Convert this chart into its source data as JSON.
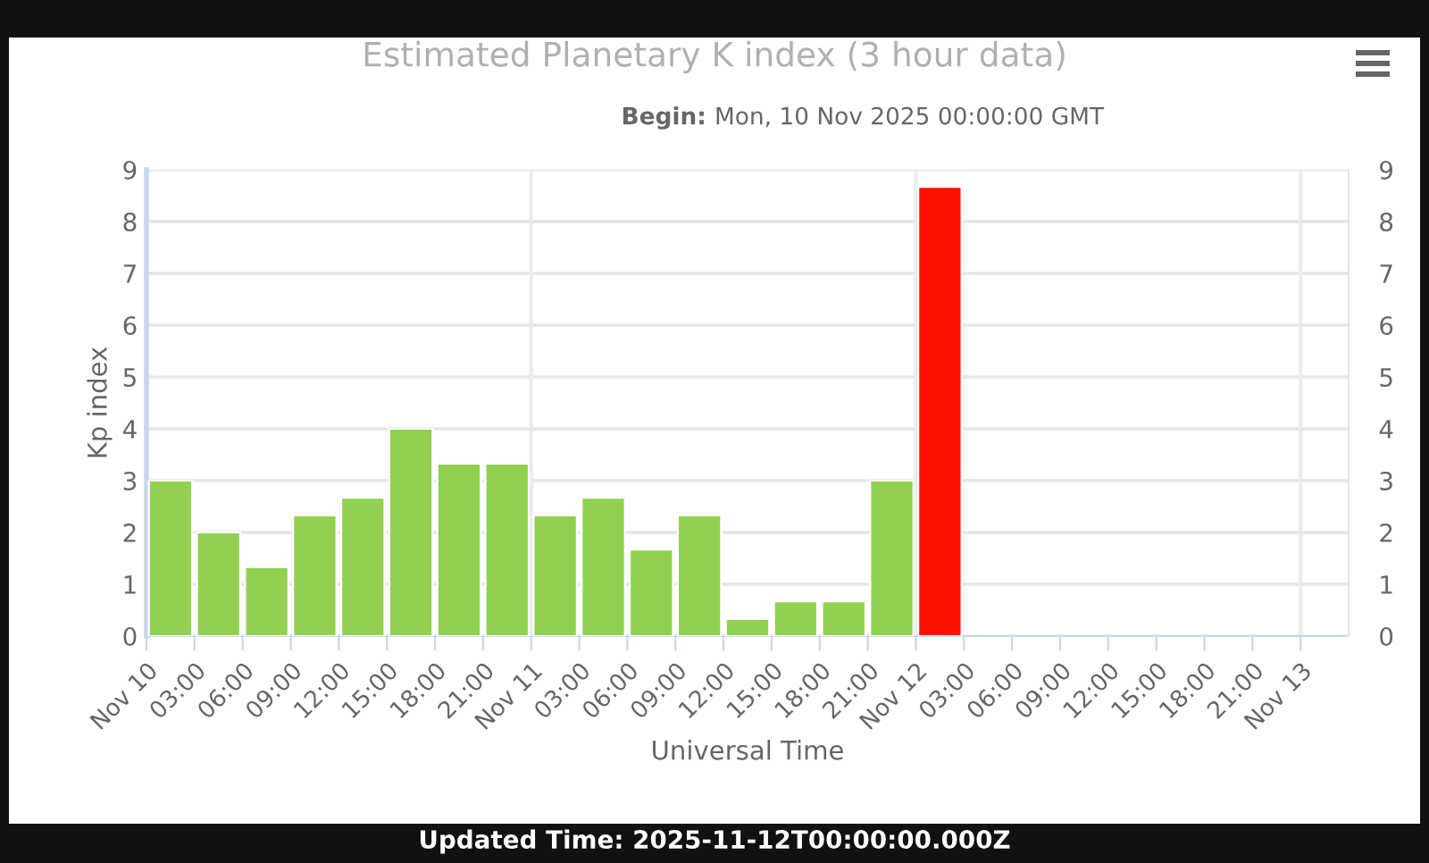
{
  "chart_data": {
    "type": "bar",
    "title": "Estimated Planetary K index (3 hour data)",
    "subtitle": "Begin: Mon, 10 Nov 2025 00:00:00 GMT",
    "xlabel": "Universal Time",
    "ylabel": "Kp index",
    "x": [
      "2025-11-10T01:30",
      "2025-11-10T04:30",
      "2025-11-10T07:30",
      "2025-11-10T10:30",
      "2025-11-10T13:30",
      "2025-11-10T16:30",
      "2025-11-10T19:30",
      "2025-11-10T22:30",
      "2025-11-11T01:30",
      "2025-11-11T04:30",
      "2025-11-11T07:30",
      "2025-11-11T10:30",
      "2025-11-11T13:30",
      "2025-11-11T16:30",
      "2025-11-11T19:30",
      "2025-11-11T22:30",
      "2025-11-12T01:30"
    ],
    "values": [
      3,
      2,
      1.33,
      2.33,
      2.67,
      4,
      3.33,
      3.33,
      2.33,
      2.67,
      1.67,
      2.33,
      0.33,
      0.67,
      0.67,
      3,
      8.67
    ],
    "colors": [
      "#92d050",
      "#92d050",
      "#92d050",
      "#92d050",
      "#92d050",
      "#92d050",
      "#92d050",
      "#92d050",
      "#92d050",
      "#92d050",
      "#92d050",
      "#92d050",
      "#92d050",
      "#92d050",
      "#92d050",
      "#92d050",
      "#ff1100"
    ],
    "xlim": [
      "2025-11-10T00:00",
      "2025-11-13T03:00"
    ],
    "xticks": [
      {
        "value": "2025-11-10T00:00",
        "label": "Nov 10"
      },
      {
        "value": "2025-11-10T03:00",
        "label": "03:00"
      },
      {
        "value": "2025-11-10T06:00",
        "label": "06:00"
      },
      {
        "value": "2025-11-10T09:00",
        "label": "09:00"
      },
      {
        "value": "2025-11-10T12:00",
        "label": "12:00"
      },
      {
        "value": "2025-11-10T15:00",
        "label": "15:00"
      },
      {
        "value": "2025-11-10T18:00",
        "label": "18:00"
      },
      {
        "value": "2025-11-10T21:00",
        "label": "21:00"
      },
      {
        "value": "2025-11-11T00:00",
        "label": "Nov 11"
      },
      {
        "value": "2025-11-11T03:00",
        "label": "03:00"
      },
      {
        "value": "2025-11-11T06:00",
        "label": "06:00"
      },
      {
        "value": "2025-11-11T09:00",
        "label": "09:00"
      },
      {
        "value": "2025-11-11T12:00",
        "label": "12:00"
      },
      {
        "value": "2025-11-11T15:00",
        "label": "15:00"
      },
      {
        "value": "2025-11-11T18:00",
        "label": "18:00"
      },
      {
        "value": "2025-11-11T21:00",
        "label": "21:00"
      },
      {
        "value": "2025-11-12T00:00",
        "label": "Nov 12"
      },
      {
        "value": "2025-11-12T03:00",
        "label": "03:00"
      },
      {
        "value": "2025-11-12T06:00",
        "label": "06:00"
      },
      {
        "value": "2025-11-12T09:00",
        "label": "09:00"
      },
      {
        "value": "2025-11-12T12:00",
        "label": "12:00"
      },
      {
        "value": "2025-11-12T15:00",
        "label": "15:00"
      },
      {
        "value": "2025-11-12T18:00",
        "label": "18:00"
      },
      {
        "value": "2025-11-12T21:00",
        "label": "21:00"
      },
      {
        "value": "2025-11-13T00:00",
        "label": "Nov 13"
      }
    ],
    "ylim": [
      0,
      9
    ],
    "yticks": [
      0,
      1,
      2,
      3,
      4,
      5,
      6,
      7,
      8,
      9
    ],
    "y2lim": [
      0,
      9
    ],
    "y2ticks": [
      0,
      1,
      2,
      3,
      4,
      5,
      6,
      7,
      8,
      9
    ],
    "grid": "y",
    "ref_lines": [
      {
        "axis": "x",
        "value": "2025-11-11T00:00",
        "color": "#ececec"
      },
      {
        "axis": "x",
        "value": "2025-11-12T00:00",
        "color": "#ececec"
      },
      {
        "axis": "x",
        "value": "2025-11-13T00:00",
        "color": "#ececec"
      }
    ],
    "annotations": [
      "Updated Time: 2025-11-12T00:00:00.000Z"
    ]
  }
}
